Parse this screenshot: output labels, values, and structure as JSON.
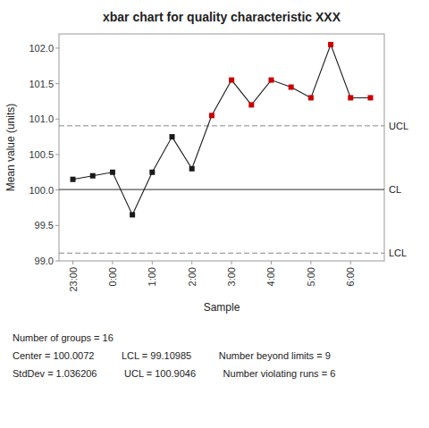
{
  "chart_data": {
    "type": "line",
    "title": "xbar chart for quality characteristic XXX",
    "x_label": "Sample",
    "y_label": "Mean value (units)",
    "categories": [
      "23:00",
      null,
      "0:00",
      null,
      "1:00",
      null,
      "2:00",
      null,
      "3:00",
      null,
      "4:00",
      null,
      "5:00",
      null,
      "6:00",
      null
    ],
    "series": [
      {
        "color": "#1a1a1a",
        "marker": "square",
        "line_style": "solid",
        "values": [
          100.15,
          100.2,
          100.25,
          99.65,
          100.25,
          100.75,
          100.3,
          101.05,
          101.55,
          101.2,
          101.55,
          101.45,
          101.3,
          102.05,
          101.3,
          101.3
        ],
        "colors": [
          "#1a1a1a",
          "#1a1a1a",
          "#1a1a1a",
          "#1a1a1a",
          "#1a1a1a",
          "#1a1a1a",
          "#1a1a1a",
          "#cc0000",
          "#cc0000",
          "#cc0000",
          "#cc0000",
          "#cc0000",
          "#cc0000",
          "#cc0000",
          "#cc0000",
          "#cc0000"
        ]
      }
    ],
    "control_lines": [
      {
        "label": "UCL",
        "value": 100.9046,
        "color": "#888888",
        "line_style": "dashed"
      },
      {
        "label": "CL",
        "value": 100.0072,
        "color": "#555555",
        "line_style": "solid"
      },
      {
        "label": "LCL",
        "value": 99.10985,
        "color": "#888888",
        "line_style": "dashed"
      }
    ],
    "ylim": [
      99.0,
      102.2
    ],
    "yticks": [
      {
        "value": 99.0,
        "label": "99.0"
      },
      {
        "value": 99.5,
        "label": "99.5"
      },
      {
        "value": 100.0,
        "label": "100.0"
      },
      {
        "value": 100.5,
        "label": "100.5"
      },
      {
        "value": 101.0,
        "label": "101.0"
      },
      {
        "value": 101.5,
        "label": "101.5"
      },
      {
        "value": 102.0,
        "label": "102.0"
      }
    ],
    "grid": false,
    "annotations": [
      "Number of groups = 16",
      "Center = 100.0072          LCL = 99.10985          Number beyond limits = 9",
      "StdDev = 1.036206          UCL = 100.9046          Number violating runs = 6"
    ]
  }
}
